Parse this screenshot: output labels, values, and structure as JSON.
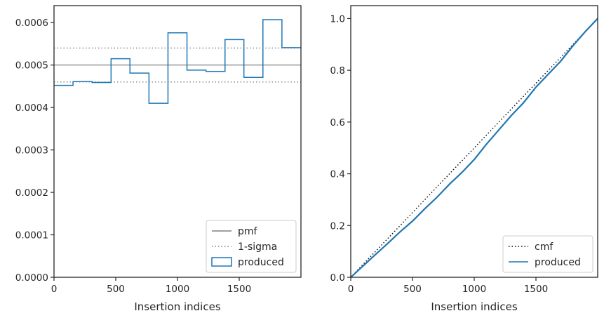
{
  "chart_data": [
    {
      "type": "line",
      "subtype": "step-histogram",
      "xlabel": "Insertion indices",
      "ylabel": "",
      "xlim": [
        0,
        2000
      ],
      "ylim": [
        0,
        0.00064
      ],
      "xticks": [
        0,
        500,
        1000,
        1500
      ],
      "xtick_labels": [
        "0",
        "500",
        "1000",
        "1500"
      ],
      "yticks": [
        0,
        0.0001,
        0.0002,
        0.0003,
        0.0004,
        0.0005,
        0.0006
      ],
      "ytick_labels": [
        "0.0000",
        "0.0001",
        "0.0002",
        "0.0003",
        "0.0004",
        "0.0005",
        "0.0006"
      ],
      "grid": false,
      "legend_position": "bottom-right",
      "series": [
        {
          "name": "pmf",
          "kind": "hline",
          "style": "solid",
          "color": "#808080",
          "y": 0.0005
        },
        {
          "name": "1-sigma",
          "kind": "hlines",
          "style": "dotted",
          "color": "#808080",
          "y": [
            0.00046,
            0.00054
          ]
        },
        {
          "name": "produced",
          "kind": "step",
          "color": "#1f77b4",
          "bin_edges": [
            0,
            154,
            308,
            462,
            615,
            769,
            923,
            1077,
            1231,
            1385,
            1538,
            1692,
            1846,
            2000
          ],
          "values": [
            0.000452,
            0.000461,
            0.000459,
            0.000515,
            0.000481,
            0.00041,
            0.000576,
            0.000488,
            0.000485,
            0.00056,
            0.000471,
            0.000607,
            0.000541
          ]
        }
      ]
    },
    {
      "type": "line",
      "xlabel": "Insertion indices",
      "ylabel": "",
      "xlim": [
        0,
        2000
      ],
      "ylim": [
        0,
        1.05
      ],
      "xticks": [
        0,
        500,
        1000,
        1500
      ],
      "xtick_labels": [
        "0",
        "500",
        "1000",
        "1500"
      ],
      "yticks": [
        0,
        0.2,
        0.4,
        0.6,
        0.8,
        1.0
      ],
      "ytick_labels": [
        "0.0",
        "0.2",
        "0.4",
        "0.6",
        "0.8",
        "1.0"
      ],
      "grid": false,
      "legend_position": "bottom-right",
      "series": [
        {
          "name": "cmf",
          "style": "dotted",
          "color": "#000000",
          "x": [
            0,
            2000
          ],
          "y": [
            0,
            1
          ]
        },
        {
          "name": "produced",
          "style": "solid",
          "color": "#1f77b4",
          "x": [
            0,
            100,
            200,
            300,
            400,
            500,
            600,
            700,
            800,
            900,
            1000,
            1100,
            1200,
            1300,
            1400,
            1500,
            1600,
            1700,
            1800,
            1900,
            2000
          ],
          "y": [
            0,
            0.044,
            0.088,
            0.131,
            0.176,
            0.217,
            0.265,
            0.31,
            0.36,
            0.405,
            0.455,
            0.515,
            0.57,
            0.625,
            0.675,
            0.735,
            0.785,
            0.835,
            0.895,
            0.95,
            1.0
          ]
        }
      ]
    }
  ]
}
